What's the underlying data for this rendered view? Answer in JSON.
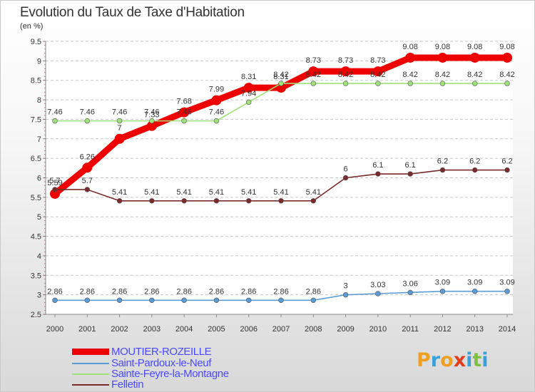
{
  "title": "Evolution du Taux de Taxe d'Habitation",
  "unit_label": "(en %)",
  "logo": {
    "text": "Proxiti",
    "letters": [
      {
        "ch": "P",
        "color": "#f0a020"
      },
      {
        "ch": "r",
        "color": "#3aa0d8"
      },
      {
        "ch": "o",
        "color": "#f0a020"
      },
      {
        "ch": "x",
        "color": "#e03c20"
      },
      {
        "ch": "i",
        "color": "#3aa0d8"
      },
      {
        "ch": "t",
        "color": "#80c040"
      },
      {
        "ch": "i",
        "color": "#3aa0d8"
      }
    ]
  },
  "colors": {
    "text": "#333333",
    "legend_text": "#4a4aff"
  },
  "chart_data": {
    "type": "line",
    "title": "Evolution du Taux de Taxe d'Habitation",
    "ylabel": "(en %)",
    "xlabel": "",
    "ylim": [
      2.5,
      9.5
    ],
    "yticks": [
      "2.5",
      "3",
      "3.5",
      "4",
      "4.5",
      "5",
      "5.5",
      "6",
      "6.5",
      "7",
      "7.5",
      "8",
      "8.5",
      "9",
      "9.5"
    ],
    "x": [
      "2000",
      "2001",
      "2002",
      "2003",
      "2004",
      "2005",
      "2006",
      "2007",
      "2008",
      "2009",
      "2010",
      "2011",
      "2012",
      "2013",
      "2014"
    ],
    "grid": "horizontal dashed",
    "legend_position": "bottom-left",
    "series": [
      {
        "name": "MOUTIER-ROZEILLE",
        "color": "#ee0000",
        "style": "thick",
        "values": [
          5.59,
          6.26,
          7,
          7.33,
          7.68,
          7.99,
          8.31,
          8.31,
          8.73,
          8.73,
          8.73,
          9.08,
          9.08,
          9.08,
          9.08
        ],
        "labels": [
          "5.59",
          "6.26",
          "7",
          "7.33",
          "7.68",
          "7.99",
          "8.31",
          "8.31",
          "8.73",
          "8.73",
          "8.73",
          "9.08",
          "9.08",
          "9.08",
          "9.08"
        ]
      },
      {
        "name": "Saint-Pardoux-le-Neuf",
        "color": "#5b9bd5",
        "style": "thin",
        "values": [
          2.86,
          2.86,
          2.86,
          2.86,
          2.86,
          2.86,
          2.86,
          2.86,
          2.86,
          3,
          3.03,
          3.06,
          3.09,
          3.09,
          3.09
        ],
        "labels": [
          "2.86",
          "2.86",
          "2.86",
          "2.86",
          "2.86",
          "2.86",
          "2.86",
          "2.86",
          "2.86",
          "3",
          "3.03",
          "3.06",
          "3.09",
          "3.09",
          "3.09"
        ]
      },
      {
        "name": "Sainte-Feyre-la-Montagne",
        "color": "#9ee07a",
        "style": "thin",
        "values": [
          7.46,
          7.46,
          7.46,
          7.46,
          7.46,
          7.46,
          7.94,
          8.42,
          8.42,
          8.42,
          8.42,
          8.42,
          8.42,
          8.42,
          8.42
        ],
        "labels": [
          "7.46",
          "7.46",
          "7.46",
          "7.46",
          "7.46",
          "7.46",
          "7.94",
          "8.42",
          "8.42",
          "8.42",
          "8.42",
          "8.42",
          "8.42",
          "8.42",
          "8.42"
        ]
      },
      {
        "name": "Felletin",
        "color": "#7a2a2a",
        "style": "thin",
        "values": [
          5.7,
          5.7,
          5.41,
          5.41,
          5.41,
          5.41,
          5.41,
          5.41,
          5.41,
          6,
          6.1,
          6.1,
          6.2,
          6.2,
          6.2
        ],
        "labels": [
          "5.7",
          "5.7",
          "5.41",
          "5.41",
          "5.41",
          "5.41",
          "5.41",
          "5.41",
          "5.41",
          "6",
          "6.1",
          "6.1",
          "6.2",
          "6.2",
          "6.2"
        ]
      }
    ]
  }
}
